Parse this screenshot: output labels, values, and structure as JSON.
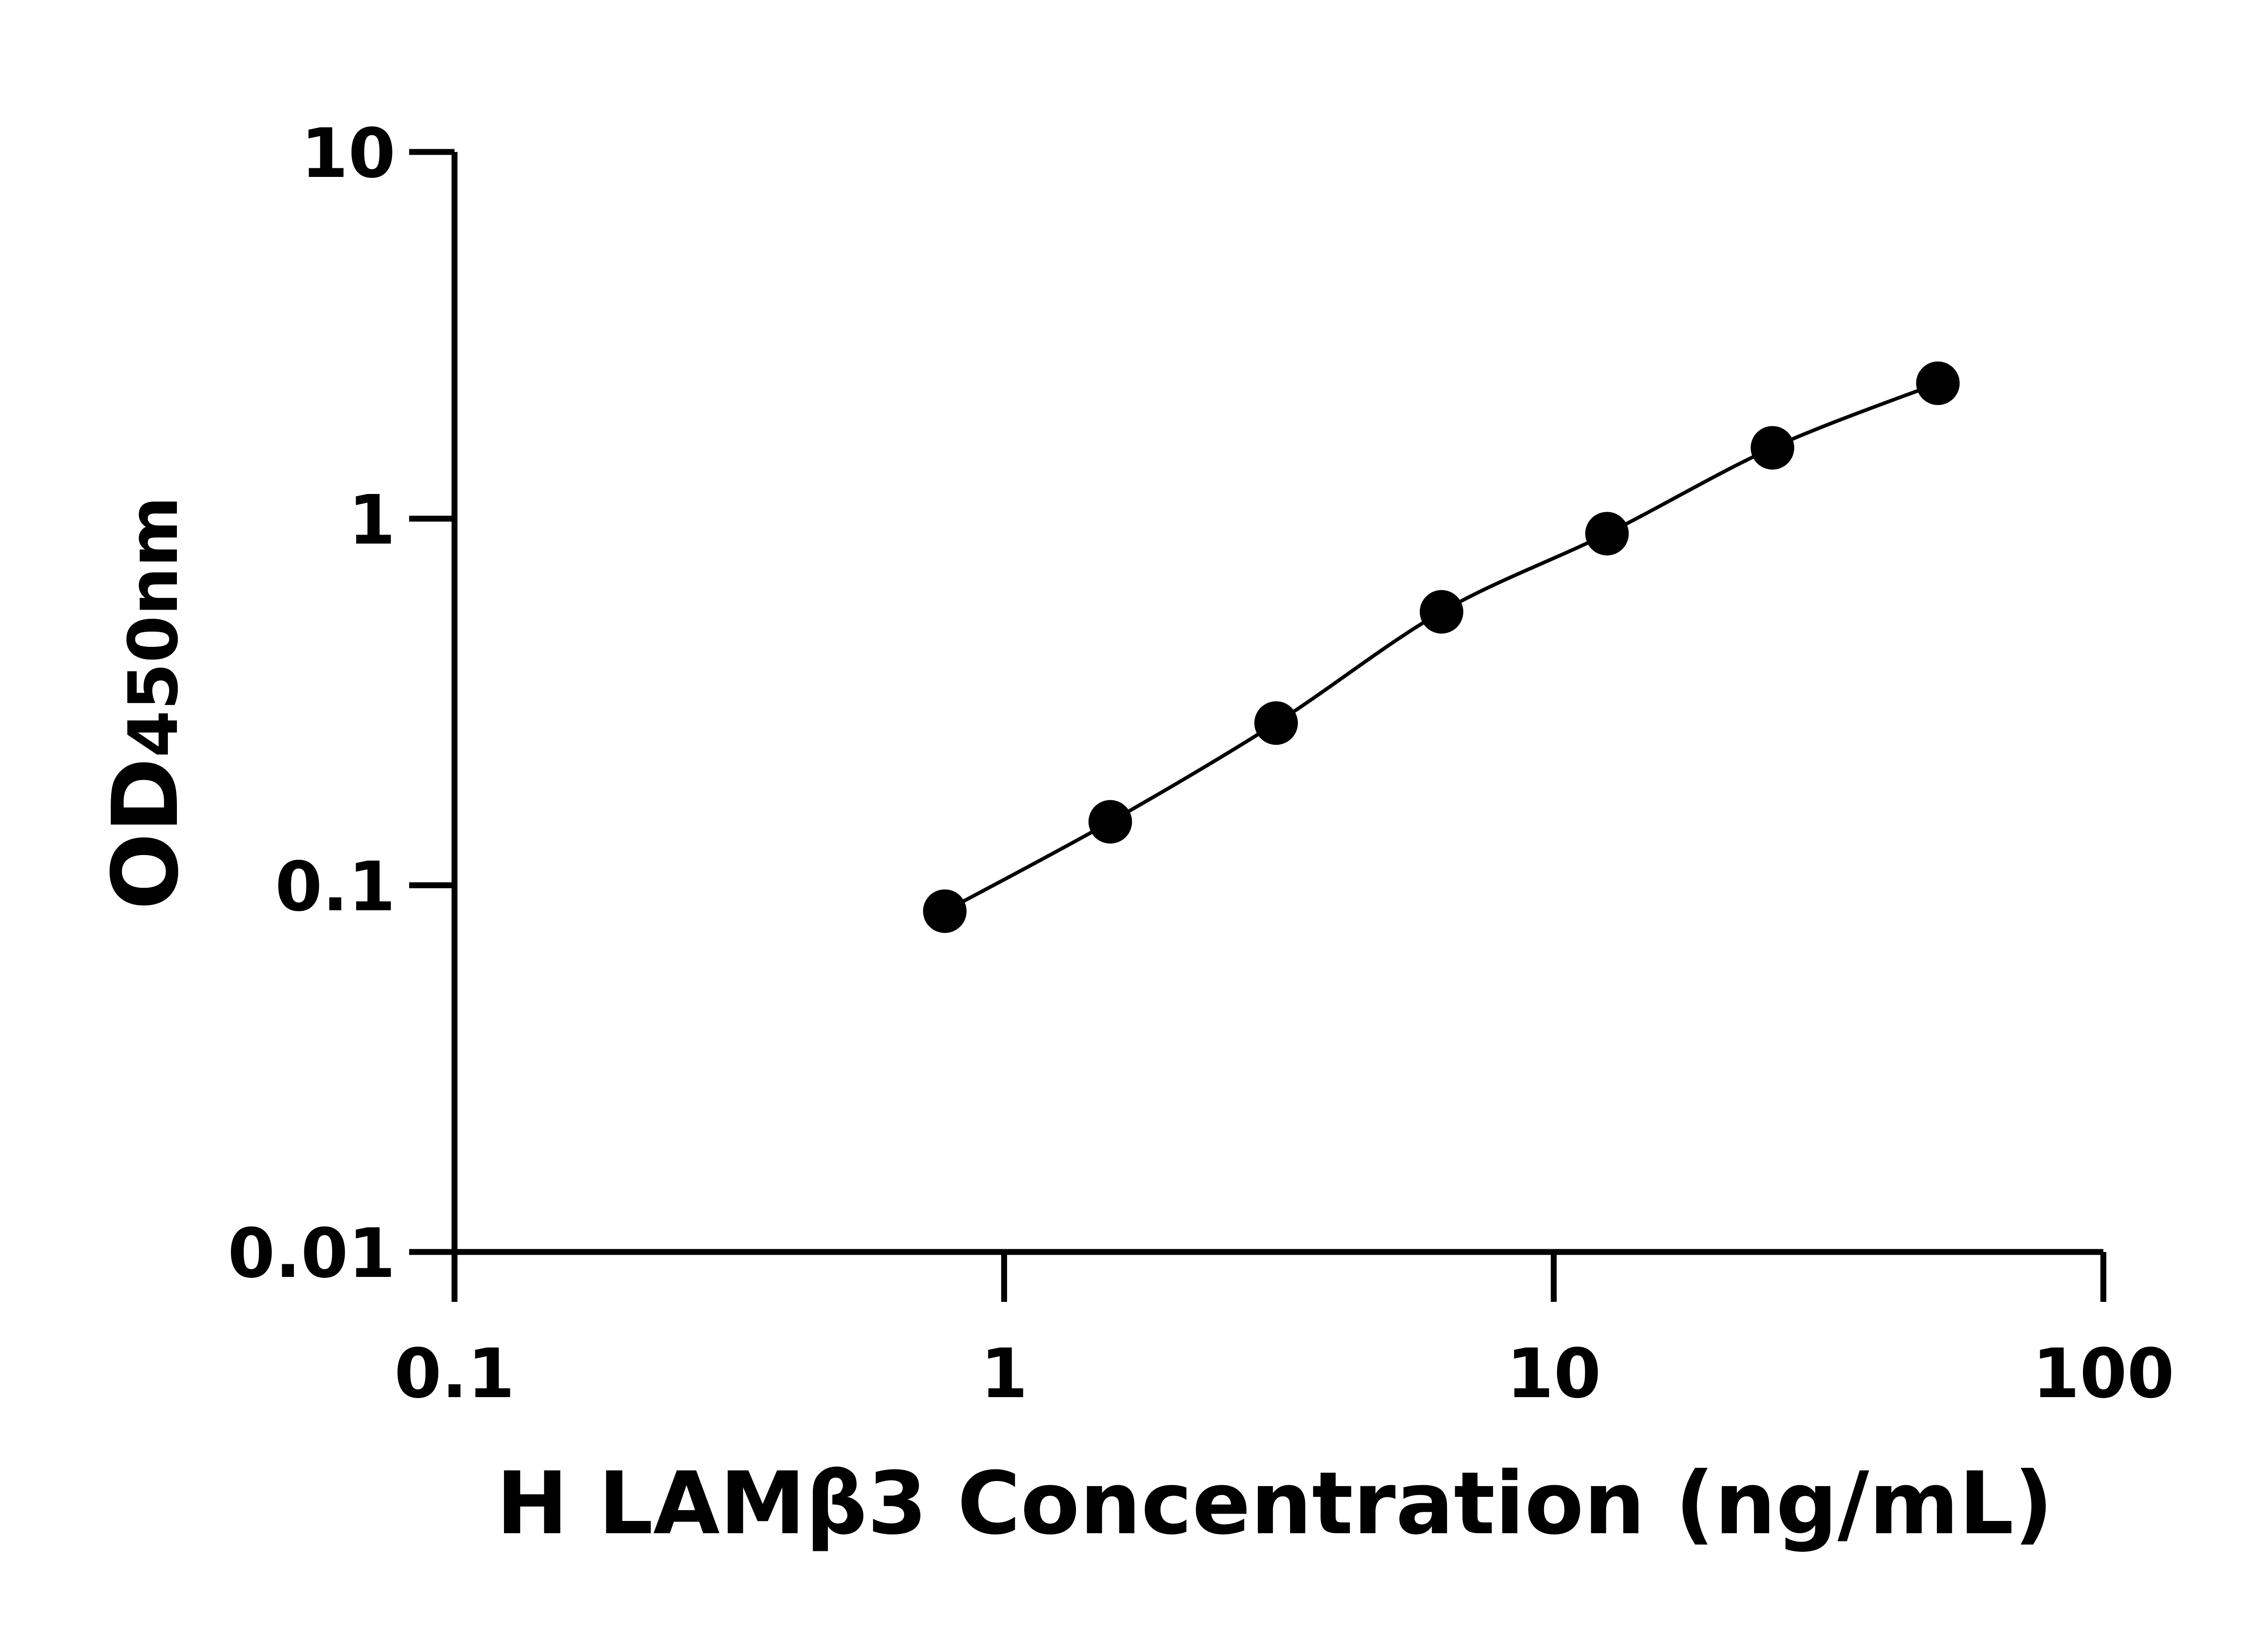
{
  "chart_data": {
    "type": "line",
    "title": "",
    "xlabel": "H LAMβ3 Concentration (ng/mL)",
    "ylabel_main": "OD",
    "ylabel_sub": "450nm",
    "x_scale": "log",
    "y_scale": "log",
    "xlim": [
      0.1,
      100
    ],
    "ylim": [
      0.01,
      10
    ],
    "x_ticks": [
      0.1,
      1,
      10,
      100
    ],
    "x_tick_labels": [
      "0.1",
      "1",
      "10",
      "100"
    ],
    "y_ticks": [
      0.01,
      0.1,
      1,
      10
    ],
    "y_tick_labels": [
      "0.01",
      "0.1",
      "1",
      "10"
    ],
    "grid": false,
    "legend": "none",
    "marker": "filled-circle",
    "color": "#000000",
    "series": [
      {
        "x": [
          0.78,
          1.56,
          3.125,
          6.25,
          12.5,
          25,
          50
        ],
        "y": [
          0.085,
          0.149,
          0.277,
          0.557,
          0.91,
          1.56,
          2.34
        ]
      }
    ]
  }
}
